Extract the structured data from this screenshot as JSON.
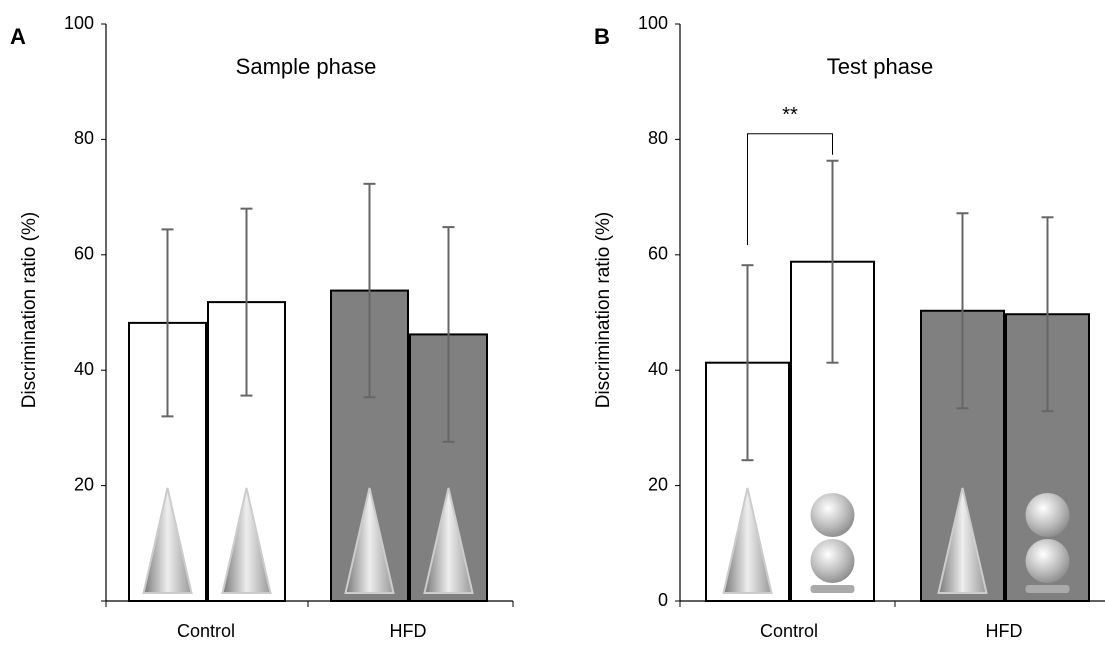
{
  "chart_data": [
    {
      "type": "bar",
      "panel": "A",
      "title": "Sample phase",
      "ylabel": "Discrimination ratio (%)",
      "categories": [
        "Control",
        "HFD"
      ],
      "category_colors": [
        "#ffffff",
        "#808080"
      ],
      "series": [
        {
          "values": [
            48.2,
            53.8
          ],
          "errors": [
            16.2,
            18.5
          ]
        },
        {
          "values": [
            51.8,
            46.2
          ],
          "errors": [
            16.2,
            18.6
          ]
        }
      ],
      "ylim": [
        0,
        100
      ],
      "yticks": [
        20,
        40,
        60,
        80,
        100
      ]
    },
    {
      "type": "bar",
      "panel": "B",
      "title": "Test phase",
      "ylabel": "Discrimination ratio (%)",
      "categories": [
        "Control",
        "HFD"
      ],
      "category_colors": [
        "#ffffff",
        "#808080"
      ],
      "series": [
        {
          "values": [
            41.3,
            50.3
          ],
          "errors": [
            16.9,
            16.9
          ]
        },
        {
          "values": [
            58.8,
            49.7
          ],
          "errors": [
            17.5,
            16.8
          ]
        }
      ],
      "ylim": [
        0,
        100
      ],
      "yticks": [
        0,
        20,
        40,
        60,
        80,
        100
      ],
      "annotation": "**"
    }
  ]
}
